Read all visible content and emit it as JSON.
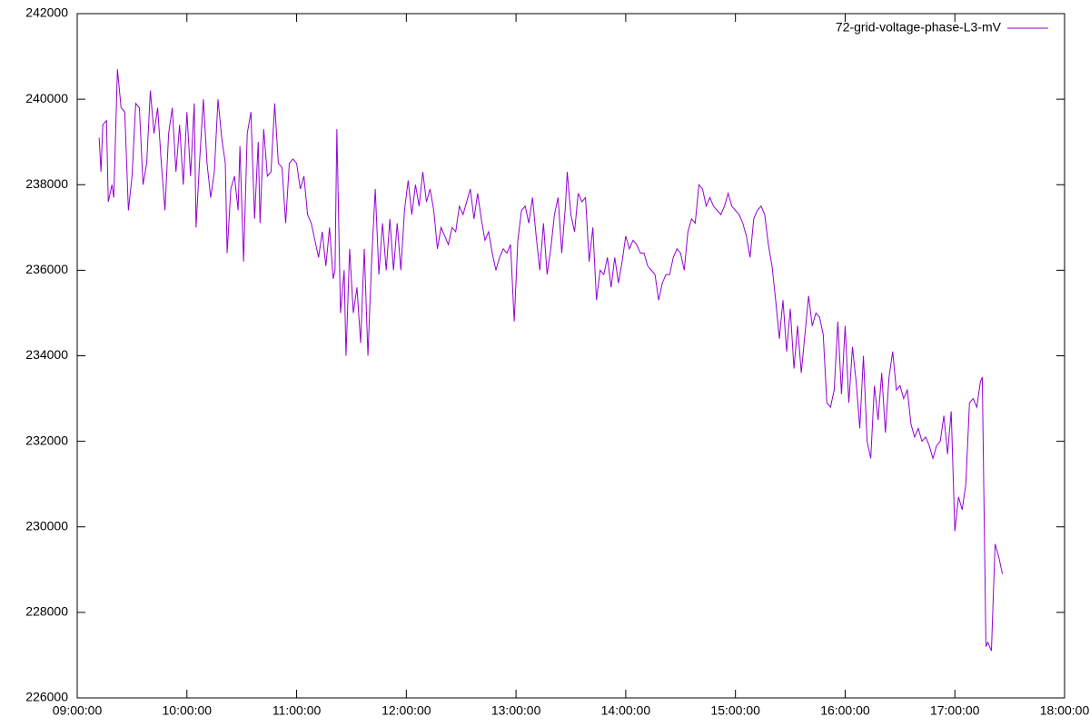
{
  "chart_data": {
    "type": "line",
    "x": [
      "09:12:00",
      "09:13:00",
      "09:14:00",
      "09:16:00",
      "09:17:00",
      "09:19:00",
      "09:20:00",
      "09:22:00",
      "09:24:00",
      "09:26:00",
      "09:28:00",
      "09:30:00",
      "09:32:00",
      "09:34:00",
      "09:36:00",
      "09:38:00",
      "09:40:00",
      "09:42:00",
      "09:44:00",
      "09:46:00",
      "09:48:00",
      "09:50:00",
      "09:52:00",
      "09:54:00",
      "09:56:00",
      "09:58:00",
      "10:00:00",
      "10:02:00",
      "10:04:00",
      "10:05:00",
      "10:07:00",
      "10:09:00",
      "10:11:00",
      "10:13:00",
      "10:15:00",
      "10:17:00",
      "10:19:00",
      "10:21:00",
      "10:22:00",
      "10:24:00",
      "10:26:00",
      "10:28:00",
      "10:29:00",
      "10:31:00",
      "10:33:00",
      "10:35:00",
      "10:37:00",
      "10:39:00",
      "10:40:00",
      "10:42:00",
      "10:44:00",
      "10:46:00",
      "10:48:00",
      "10:50:00",
      "10:52:00",
      "10:54:00",
      "10:56:00",
      "10:58:00",
      "11:00:00",
      "11:02:00",
      "11:04:00",
      "11:06:00",
      "11:08:00",
      "11:10:00",
      "11:12:00",
      "11:14:00",
      "11:16:00",
      "11:18:00",
      "11:20:00",
      "11:21:00",
      "11:22:00",
      "11:24:00",
      "11:26:00",
      "11:27:00",
      "11:29:00",
      "11:31:00",
      "11:33:00",
      "11:35:00",
      "11:37:00",
      "11:39:00",
      "11:41:00",
      "11:43:00",
      "11:45:00",
      "11:47:00",
      "11:49:00",
      "11:51:00",
      "11:53:00",
      "11:55:00",
      "11:57:00",
      "11:59:00",
      "12:01:00",
      "12:03:00",
      "12:05:00",
      "12:07:00",
      "12:09:00",
      "12:11:00",
      "12:13:00",
      "12:15:00",
      "12:17:00",
      "12:19:00",
      "12:21:00",
      "12:23:00",
      "12:25:00",
      "12:27:00",
      "12:29:00",
      "12:31:00",
      "12:33:00",
      "12:35:00",
      "12:37:00",
      "12:39:00",
      "12:41:00",
      "12:43:00",
      "12:45:00",
      "12:47:00",
      "12:49:00",
      "12:51:00",
      "12:53:00",
      "12:55:00",
      "12:57:00",
      "12:59:00",
      "13:01:00",
      "13:03:00",
      "13:05:00",
      "13:07:00",
      "13:09:00",
      "13:11:00",
      "13:13:00",
      "13:15:00",
      "13:17:00",
      "13:19:00",
      "13:21:00",
      "13:23:00",
      "13:25:00",
      "13:27:00",
      "13:28:00",
      "13:30:00",
      "13:32:00",
      "13:34:00",
      "13:36:00",
      "13:38:00",
      "13:40:00",
      "13:42:00",
      "13:44:00",
      "13:46:00",
      "13:48:00",
      "13:50:00",
      "13:52:00",
      "13:54:00",
      "13:56:00",
      "13:58:00",
      "14:00:00",
      "14:02:00",
      "14:04:00",
      "14:06:00",
      "14:08:00",
      "14:10:00",
      "14:12:00",
      "14:14:00",
      "14:16:00",
      "14:18:00",
      "14:20:00",
      "14:22:00",
      "14:24:00",
      "14:26:00",
      "14:28:00",
      "14:30:00",
      "14:32:00",
      "14:34:00",
      "14:36:00",
      "14:38:00",
      "14:40:00",
      "14:42:00",
      "14:44:00",
      "14:46:00",
      "14:48:00",
      "14:50:00",
      "14:52:00",
      "14:54:00",
      "14:56:00",
      "14:58:00",
      "15:00:00",
      "15:02:00",
      "15:04:00",
      "15:06:00",
      "15:08:00",
      "15:10:00",
      "15:12:00",
      "15:14:00",
      "15:16:00",
      "15:18:00",
      "15:20:00",
      "15:22:00",
      "15:24:00",
      "15:26:00",
      "15:28:00",
      "15:30:00",
      "15:32:00",
      "15:34:00",
      "15:36:00",
      "15:38:00",
      "15:40:00",
      "15:42:00",
      "15:44:00",
      "15:46:00",
      "15:48:00",
      "15:50:00",
      "15:52:00",
      "15:54:00",
      "15:56:00",
      "15:58:00",
      "16:00:00",
      "16:02:00",
      "16:04:00",
      "16:06:00",
      "16:08:00",
      "16:10:00",
      "16:12:00",
      "16:14:00",
      "16:16:00",
      "16:18:00",
      "16:20:00",
      "16:22:00",
      "16:24:00",
      "16:26:00",
      "16:28:00",
      "16:30:00",
      "16:32:00",
      "16:34:00",
      "16:36:00",
      "16:38:00",
      "16:40:00",
      "16:42:00",
      "16:44:00",
      "16:46:00",
      "16:48:00",
      "16:50:00",
      "16:52:00",
      "16:54:00",
      "16:56:00",
      "16:58:00",
      "17:00:00",
      "17:02:00",
      "17:04:00",
      "17:06:00",
      "17:08:00",
      "17:10:00",
      "17:12:00",
      "17:14:00",
      "17:15:00",
      "17:17:00",
      "17:18:00",
      "17:20:00",
      "17:22:00",
      "17:24:00",
      "17:26:00"
    ],
    "series": [
      {
        "name": "72-grid-voltage-phase-L3-mV",
        "color": "#9400d3",
        "values": [
          239100,
          238300,
          239400,
          239500,
          237600,
          238000,
          237700,
          240700,
          239800,
          239700,
          237400,
          238200,
          239900,
          239800,
          238000,
          238500,
          240200,
          239200,
          239800,
          238500,
          237400,
          239200,
          239800,
          238300,
          239400,
          238000,
          239700,
          238200,
          239900,
          237000,
          238600,
          240000,
          238500,
          237700,
          238300,
          240000,
          239100,
          238500,
          236400,
          237900,
          238200,
          237400,
          238900,
          236200,
          239200,
          239700,
          237200,
          239000,
          237100,
          239300,
          238200,
          238300,
          239900,
          238500,
          238400,
          237100,
          238500,
          238600,
          238500,
          237900,
          238200,
          237300,
          237100,
          236700,
          236300,
          236900,
          236100,
          237000,
          235800,
          236000,
          239300,
          235000,
          236000,
          234000,
          236500,
          235000,
          235600,
          234300,
          236500,
          234000,
          236200,
          237900,
          235900,
          237100,
          236000,
          237200,
          236000,
          237100,
          236000,
          237400,
          238100,
          237300,
          238000,
          237500,
          238300,
          237600,
          237900,
          237400,
          236500,
          237000,
          236800,
          236600,
          237000,
          236900,
          237500,
          237300,
          237600,
          237900,
          237200,
          237800,
          237200,
          236700,
          236900,
          236400,
          236000,
          236300,
          236500,
          236400,
          236600,
          234800,
          236700,
          237400,
          237500,
          237100,
          237700,
          236800,
          236000,
          237100,
          235900,
          236500,
          237300,
          237700,
          236400,
          237500,
          238300,
          237300,
          236900,
          237800,
          237600,
          237700,
          236200,
          237000,
          235300,
          236000,
          235900,
          236300,
          235600,
          236300,
          235700,
          236200,
          236800,
          236500,
          236700,
          236600,
          236400,
          236400,
          236100,
          236000,
          235900,
          235300,
          235700,
          235900,
          235900,
          236300,
          236500,
          236400,
          236000,
          236900,
          237200,
          237100,
          238000,
          237900,
          237500,
          237700,
          237500,
          237400,
          237300,
          237500,
          237800,
          237500,
          237400,
          237300,
          237100,
          236800,
          236300,
          237200,
          237400,
          237500,
          237300,
          236600,
          236100,
          235300,
          234400,
          235300,
          234100,
          235100,
          233700,
          234700,
          233600,
          234500,
          235400,
          234700,
          235000,
          234900,
          234500,
          232900,
          232800,
          233200,
          234800,
          233100,
          234700,
          232900,
          234200,
          233400,
          232300,
          234000,
          232000,
          231600,
          233300,
          232500,
          233600,
          232200,
          233500,
          234100,
          233200,
          233300,
          233000,
          233200,
          232400,
          232100,
          232300,
          232000,
          232100,
          231900,
          231600,
          231900,
          232000,
          232600,
          231700,
          232700,
          229900,
          230700,
          230400,
          231000,
          232900,
          233000,
          232800,
          233400,
          233500,
          227200,
          227300,
          227100,
          229600,
          229300,
          228900
        ]
      }
    ],
    "xlim": [
      "09:00:00",
      "18:00:00"
    ],
    "xticks": [
      "09:00:00",
      "10:00:00",
      "11:00:00",
      "12:00:00",
      "13:00:00",
      "14:00:00",
      "15:00:00",
      "16:00:00",
      "17:00:00",
      "18:00:00"
    ],
    "ylim": [
      226000,
      242000
    ],
    "yticks": [
      226000,
      228000,
      230000,
      232000,
      234000,
      236000,
      238000,
      240000,
      242000
    ],
    "legend": "top right",
    "grid": false
  }
}
